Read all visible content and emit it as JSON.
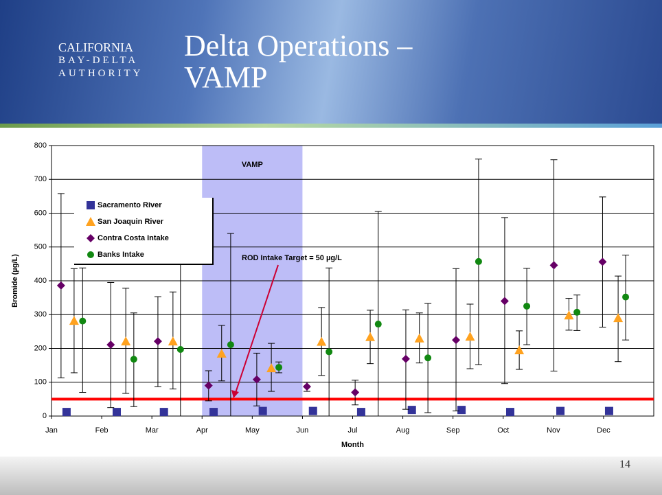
{
  "header": {
    "logo": [
      "CALIFORNIA",
      "BAY-DELTA",
      "AUTHORITY"
    ],
    "title": "Delta Operations – VAMP"
  },
  "chart_data": {
    "type": "scatter",
    "ylabel": "Bromide (µg/L)",
    "xlabel": "Month",
    "xlim": [
      0,
      12
    ],
    "ylim": [
      0,
      800
    ],
    "xticks": [
      {
        "value": 0,
        "label": "Jan"
      },
      {
        "value": 1,
        "label": "Feb"
      },
      {
        "value": 2,
        "label": "Mar"
      },
      {
        "value": 3,
        "label": "Apr"
      },
      {
        "value": 4,
        "label": "May"
      },
      {
        "value": 5,
        "label": "Jun"
      },
      {
        "value": 6,
        "label": "Jul"
      },
      {
        "value": 7,
        "label": "Aug"
      },
      {
        "value": 8,
        "label": "Sep"
      },
      {
        "value": 9,
        "label": "Oct"
      },
      {
        "value": 10,
        "label": "Nov"
      },
      {
        "value": 11,
        "label": "Dec"
      }
    ],
    "yticks": [
      0,
      100,
      200,
      300,
      400,
      500,
      600,
      700,
      800
    ],
    "grid": true,
    "legend": "upper left",
    "span": {
      "label": "VAMP",
      "x": [
        3,
        5
      ],
      "color": "#bdbdf7"
    },
    "reference_line": {
      "value": 50,
      "color": "#ff0000",
      "label": "ROD Intake Target = 50 µg/L"
    },
    "series": [
      {
        "name": "Sacramento River",
        "color": "#333399",
        "marker": "square",
        "x": [
          0.3,
          1.3,
          2.24,
          3.23,
          4.21,
          5.21,
          6.17,
          7.18,
          8.17,
          9.14,
          10.14,
          11.11
        ],
        "values": [
          12,
          12,
          12,
          12,
          15,
          15,
          12,
          18,
          18,
          12,
          15,
          15
        ]
      },
      {
        "name": "San Joaquin River",
        "color": "#ffa21f",
        "marker": "triangle",
        "x": [
          0.45,
          1.48,
          2.42,
          3.39,
          4.38,
          5.38,
          6.35,
          7.33,
          8.34,
          9.32,
          10.31,
          11.29
        ],
        "values": [
          282,
          221,
          221,
          185,
          142,
          220,
          234,
          230,
          235,
          195,
          298,
          290
        ],
        "low": [
          128,
          67,
          80,
          104,
          73,
          120,
          155,
          157,
          140,
          138,
          254,
          161
        ],
        "high": [
          436,
          378,
          367,
          268,
          215,
          321,
          313,
          305,
          331,
          252,
          348,
          414
        ]
      },
      {
        "name": "Contra Costa Intake",
        "color": "#660066",
        "marker": "diamond",
        "x": [
          0.19,
          1.18,
          2.12,
          3.13,
          4.09,
          5.09,
          6.05,
          7.06,
          8.06,
          9.03,
          10.01,
          10.98
        ],
        "values": [
          386,
          211,
          221,
          90,
          108,
          87,
          70,
          169,
          225,
          340,
          446,
          456
        ],
        "low": [
          113,
          25,
          87,
          45,
          30,
          73,
          33,
          20,
          15,
          96,
          133,
          263
        ],
        "high": [
          658,
          395,
          353,
          134,
          186,
          100,
          106,
          314,
          436,
          587,
          758,
          648
        ]
      },
      {
        "name": "Banks Intake",
        "color": "#118811",
        "marker": "circle",
        "x": [
          0.62,
          1.64,
          2.57,
          3.57,
          4.53,
          5.53,
          6.51,
          7.5,
          8.51,
          9.47,
          10.47,
          11.44
        ],
        "values": [
          281,
          168,
          197,
          211,
          144,
          190,
          272,
          172,
          457,
          325,
          307,
          352
        ],
        "low": [
          70,
          28,
          0,
          0,
          128,
          0,
          0,
          10,
          152,
          211,
          253,
          225
        ],
        "high": [
          438,
          305,
          455,
          540,
          160,
          438,
          605,
          333,
          760,
          437,
          358,
          476
        ]
      }
    ]
  },
  "footer": {
    "page_number": "14"
  }
}
